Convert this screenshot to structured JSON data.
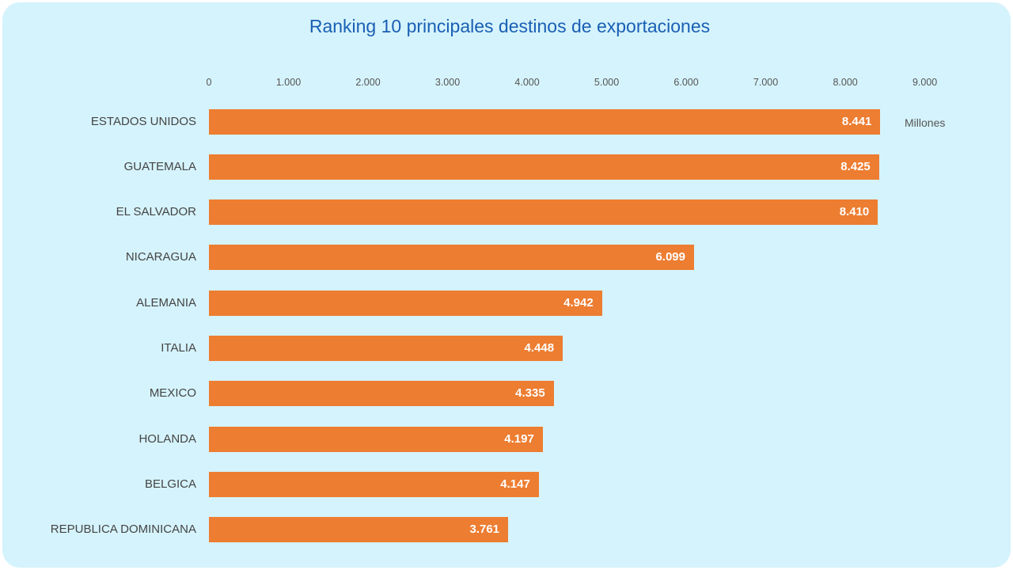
{
  "chart_data": {
    "type": "bar",
    "orientation": "horizontal",
    "title": "Ranking 10 principales destinos de exportaciones",
    "unit_label": "Millones",
    "xlim": [
      0,
      9000
    ],
    "ticks": [
      "0",
      "1.000",
      "2.000",
      "3.000",
      "4.000",
      "5.000",
      "6.000",
      "7.000",
      "8.000",
      "9.000"
    ],
    "tick_values": [
      0,
      1000,
      2000,
      3000,
      4000,
      5000,
      6000,
      7000,
      8000,
      9000
    ],
    "categories": [
      "ESTADOS UNIDOS",
      "GUATEMALA",
      "EL SALVADOR",
      "NICARAGUA",
      "ALEMANIA",
      "ITALIA",
      "MEXICO",
      "HOLANDA",
      "BELGICA",
      "REPUBLICA DOMINICANA"
    ],
    "values": [
      8441,
      8425,
      8410,
      6099,
      4942,
      4448,
      4335,
      4197,
      4147,
      3761
    ],
    "value_labels": [
      "8.441",
      "8.425",
      "8.410",
      "6.099",
      "4.942",
      "4.448",
      "4.335",
      "4.197",
      "4.147",
      "3.761"
    ],
    "bar_color": "#ed7d31",
    "title_color": "#1a5fb4",
    "background_color": "#d5f3fc",
    "grid": false,
    "legend": false
  }
}
